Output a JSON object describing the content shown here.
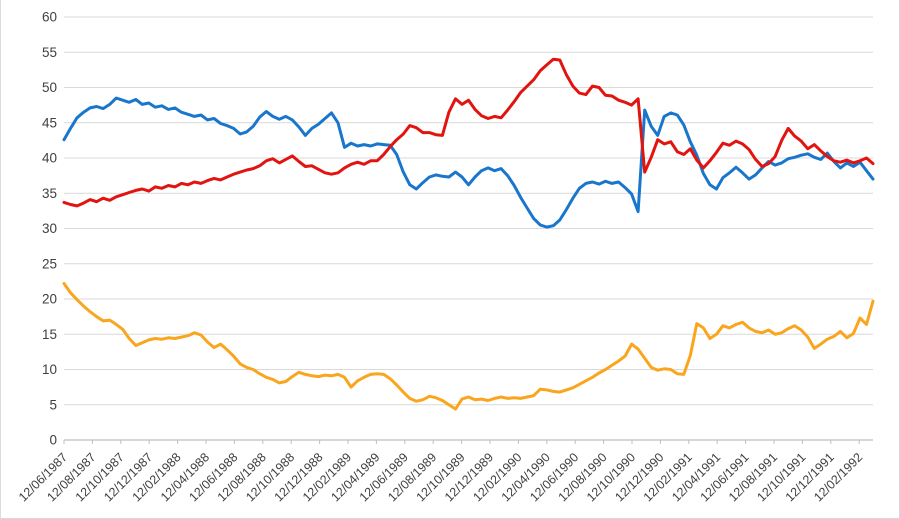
{
  "page": {
    "background_color": "#ffffff",
    "frame_border_color": "#d8d8d8"
  },
  "axes": {
    "grid_color": "#d9d9d9",
    "axis_line_color": "#bfbfbf",
    "tick_color": "#bfbfbf",
    "label_color": "#404040",
    "y_label_color": "#404040"
  },
  "chart_data": {
    "type": "line",
    "title": "",
    "xlabel": "",
    "ylabel": "",
    "ylim": [
      0,
      60
    ],
    "grid": true,
    "legend_position": "none",
    "ytick_values": [
      0,
      5,
      10,
      15,
      20,
      25,
      30,
      35,
      40,
      45,
      50,
      55,
      60
    ],
    "x_tick_labels": [
      "12/06/1987",
      "12/08/1987",
      "12/10/1987",
      "12/12/1987",
      "12/02/1988",
      "12/04/1988",
      "12/06/1988",
      "12/08/1988",
      "12/10/1988",
      "12/12/1988",
      "12/02/1989",
      "12/04/1989",
      "12/06/1989",
      "12/08/1989",
      "12/10/1989",
      "12/12/1989",
      "12/02/1990",
      "12/04/1990",
      "12/06/1990",
      "12/08/1990",
      "12/10/1990",
      "12/12/1990",
      "12/02/1991",
      "12/04/1991",
      "12/06/1991",
      "12/08/1991",
      "12/10/1991",
      "12/12/1991",
      "12/02/1992"
    ],
    "series": [
      {
        "name": "blue-series",
        "color": "#1976cd",
        "values": [
          42.6,
          44.2,
          45.7,
          46.5,
          47.1,
          47.3,
          47.0,
          47.6,
          48.5,
          48.2,
          47.9,
          48.3,
          47.6,
          47.8,
          47.2,
          47.4,
          46.9,
          47.1,
          46.5,
          46.2,
          45.9,
          46.1,
          45.4,
          45.6,
          44.9,
          44.6,
          44.2,
          43.4,
          43.7,
          44.5,
          45.8,
          46.6,
          45.9,
          45.5,
          45.9,
          45.4,
          44.4,
          43.2,
          44.2,
          44.8,
          45.6,
          46.4,
          45.0,
          41.5,
          42.1,
          41.7,
          41.9,
          41.7,
          42.0,
          41.9,
          41.8,
          40.5,
          38.0,
          36.2,
          35.6,
          36.5,
          37.3,
          37.6,
          37.4,
          37.3,
          38.0,
          37.3,
          36.2,
          37.3,
          38.2,
          38.6,
          38.2,
          38.5,
          37.5,
          36.1,
          34.4,
          32.9,
          31.4,
          30.5,
          30.2,
          30.4,
          31.2,
          32.7,
          34.3,
          35.7,
          36.4,
          36.6,
          36.3,
          36.7,
          36.4,
          36.6,
          35.8,
          34.9,
          32.4,
          46.8,
          44.5,
          43.2,
          45.9,
          46.4,
          46.1,
          44.7,
          42.3,
          40.4,
          37.8,
          36.2,
          35.6,
          37.2,
          37.9,
          38.7,
          37.9,
          37.0,
          37.6,
          38.6,
          39.5,
          39.0,
          39.3,
          39.9,
          40.1,
          40.4,
          40.6,
          40.1,
          39.8,
          40.7,
          39.5,
          38.6,
          39.3,
          38.8,
          39.4,
          38.2,
          37.0
        ]
      },
      {
        "name": "red-series",
        "color": "#e11410",
        "values": [
          33.7,
          33.4,
          33.2,
          33.6,
          34.1,
          33.8,
          34.3,
          34.0,
          34.5,
          34.8,
          35.1,
          35.4,
          35.6,
          35.3,
          35.9,
          35.7,
          36.1,
          35.9,
          36.4,
          36.2,
          36.6,
          36.4,
          36.8,
          37.1,
          36.9,
          37.3,
          37.7,
          38.0,
          38.3,
          38.5,
          38.9,
          39.6,
          39.9,
          39.3,
          39.8,
          40.3,
          39.5,
          38.8,
          38.9,
          38.4,
          37.9,
          37.7,
          37.9,
          38.6,
          39.1,
          39.4,
          39.1,
          39.6,
          39.6,
          40.5,
          41.6,
          42.6,
          43.4,
          44.6,
          44.3,
          43.6,
          43.6,
          43.3,
          43.2,
          46.5,
          48.4,
          47.6,
          48.2,
          46.9,
          46.0,
          45.6,
          45.9,
          45.7,
          46.8,
          48.0,
          49.3,
          50.2,
          51.1,
          52.4,
          53.2,
          54.0,
          53.9,
          51.8,
          50.2,
          49.2,
          49.0,
          50.2,
          50.0,
          48.9,
          48.8,
          48.2,
          47.9,
          47.5,
          48.4,
          38.0,
          40.1,
          42.6,
          42.0,
          42.3,
          40.9,
          40.5,
          41.3,
          39.7,
          38.6,
          39.6,
          40.8,
          42.1,
          41.8,
          42.4,
          42.0,
          41.2,
          39.8,
          38.8,
          39.2,
          40.2,
          42.5,
          44.2,
          43.1,
          42.4,
          41.3,
          41.9,
          41.0,
          40.2,
          39.6,
          39.4,
          39.7,
          39.3,
          39.6,
          40.0,
          39.2
        ]
      },
      {
        "name": "orange-series",
        "color": "#faa51e",
        "values": [
          22.2,
          20.9,
          19.9,
          19.0,
          18.2,
          17.5,
          16.9,
          17.0,
          16.4,
          15.7,
          14.4,
          13.4,
          13.8,
          14.2,
          14.4,
          14.3,
          14.5,
          14.4,
          14.6,
          14.8,
          15.2,
          14.9,
          13.9,
          13.1,
          13.6,
          12.8,
          11.9,
          10.8,
          10.3,
          10.0,
          9.4,
          8.9,
          8.6,
          8.1,
          8.3,
          9.0,
          9.6,
          9.3,
          9.1,
          9.0,
          9.2,
          9.1,
          9.3,
          8.9,
          7.5,
          8.4,
          8.9,
          9.3,
          9.4,
          9.3,
          8.7,
          7.8,
          6.8,
          5.9,
          5.5,
          5.7,
          6.2,
          6.0,
          5.6,
          5.0,
          4.4,
          5.8,
          6.1,
          5.7,
          5.8,
          5.6,
          5.9,
          6.1,
          5.9,
          6.0,
          5.9,
          6.1,
          6.3,
          7.2,
          7.1,
          6.9,
          6.8,
          7.1,
          7.4,
          7.9,
          8.4,
          8.9,
          9.5,
          10.0,
          10.6,
          11.2,
          11.9,
          13.6,
          12.9,
          11.6,
          10.3,
          9.9,
          10.1,
          10.0,
          9.4,
          9.3,
          12.0,
          16.5,
          15.9,
          14.4,
          15.0,
          16.2,
          15.9,
          16.4,
          16.7,
          15.9,
          15.4,
          15.2,
          15.6,
          15.0,
          15.2,
          15.8,
          16.2,
          15.6,
          14.6,
          13.0,
          13.6,
          14.3,
          14.7,
          15.4,
          14.5,
          15.1,
          17.3,
          16.4,
          19.7
        ]
      }
    ]
  }
}
